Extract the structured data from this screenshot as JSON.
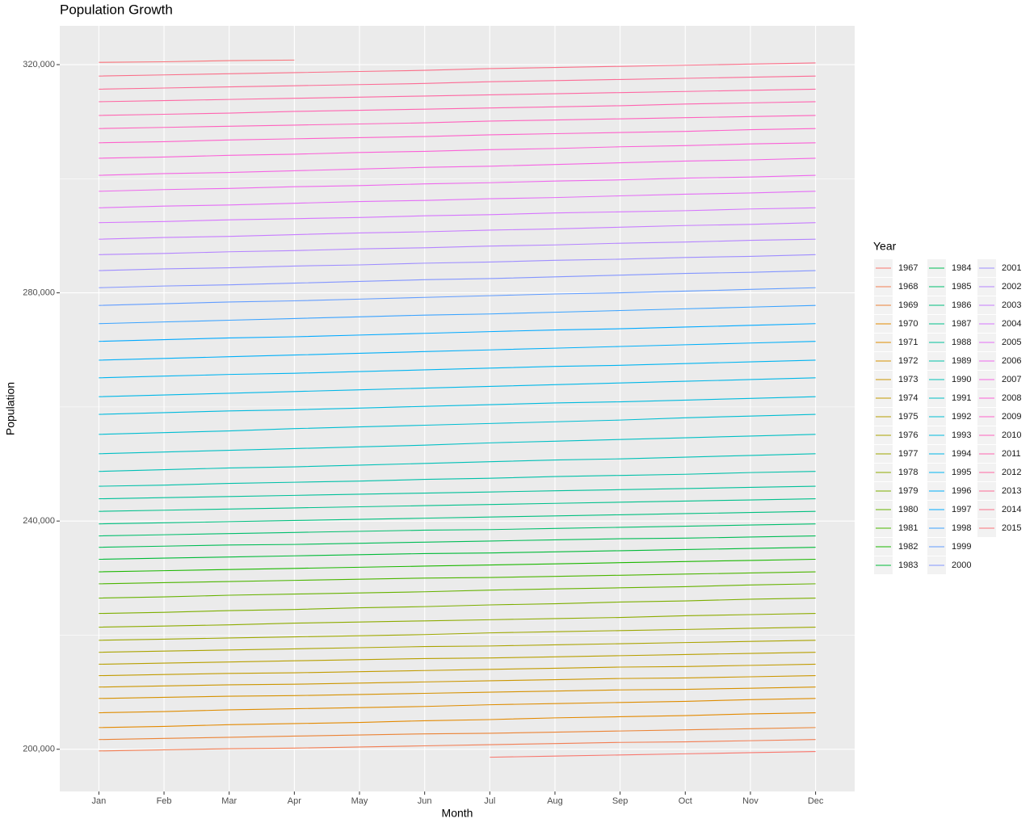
{
  "chart_data": {
    "type": "line",
    "title": "Population Growth",
    "x_label": "Month",
    "y_label": "Population",
    "categories": [
      "Jan",
      "Feb",
      "Mar",
      "Apr",
      "May",
      "Jun",
      "Jul",
      "Aug",
      "Sep",
      "Oct",
      "Nov",
      "Dec"
    ],
    "ylim": [
      192600,
      326800
    ],
    "yticks": [
      {
        "value": 200000,
        "label": "200,000"
      },
      {
        "value": 240000,
        "label": "240,000"
      },
      {
        "value": 280000,
        "label": "280,000"
      },
      {
        "value": 320000,
        "label": "320,000"
      }
    ],
    "minor_yticks": [
      220000,
      260000,
      300000
    ],
    "grid": true,
    "legend": {
      "title": "Year",
      "position": "right",
      "columns": 3
    },
    "series": [
      {
        "name": "1967",
        "color": "#F8766D",
        "values": [
          null,
          null,
          null,
          null,
          null,
          null,
          198600,
          198800,
          199000,
          199200,
          199400,
          199600
        ]
      },
      {
        "name": "1968",
        "color": "#F27D53",
        "values": [
          199700,
          199900,
          200100,
          200200,
          200400,
          200600,
          200800,
          201000,
          201200,
          201300,
          201500,
          201700
        ]
      },
      {
        "name": "1969",
        "color": "#EB8335",
        "values": [
          201700,
          201900,
          202100,
          202300,
          202500,
          202700,
          202800,
          203000,
          203200,
          203400,
          203600,
          203800
        ]
      },
      {
        "name": "1970",
        "color": "#E38900",
        "values": [
          203800,
          204000,
          204300,
          204500,
          204700,
          205000,
          205200,
          205500,
          205700,
          205900,
          206200,
          206400
        ]
      },
      {
        "name": "1971",
        "color": "#DE8C00",
        "values": [
          206400,
          206600,
          206900,
          207100,
          207300,
          207500,
          207800,
          208000,
          208200,
          208400,
          208700,
          208900
        ]
      },
      {
        "name": "1972",
        "color": "#D59100",
        "values": [
          208900,
          209100,
          209300,
          209400,
          209600,
          209800,
          210000,
          210200,
          210400,
          210500,
          210700,
          210900
        ]
      },
      {
        "name": "1973",
        "color": "#CB9600",
        "values": [
          210900,
          211100,
          211300,
          211400,
          211600,
          211800,
          212000,
          212200,
          212400,
          212500,
          212700,
          212900
        ]
      },
      {
        "name": "1974",
        "color": "#C19B00",
        "values": [
          212900,
          213100,
          213300,
          213400,
          213600,
          213800,
          214000,
          214200,
          214400,
          214500,
          214700,
          214900
        ]
      },
      {
        "name": "1975",
        "color": "#B79F00",
        "values": [
          214900,
          215100,
          215300,
          215500,
          215700,
          215900,
          216000,
          216200,
          216400,
          216600,
          216800,
          217000
        ]
      },
      {
        "name": "1976",
        "color": "#AAA300",
        "values": [
          217000,
          217200,
          217400,
          217600,
          217800,
          218000,
          218100,
          218300,
          218500,
          218700,
          218900,
          219100
        ]
      },
      {
        "name": "1977",
        "color": "#9DA700",
        "values": [
          219100,
          219300,
          219500,
          219700,
          219900,
          220100,
          220400,
          220600,
          220800,
          221000,
          221200,
          221400
        ]
      },
      {
        "name": "1978",
        "color": "#8DAB00",
        "values": [
          221400,
          221600,
          221800,
          222100,
          222300,
          222500,
          222700,
          222900,
          223100,
          223400,
          223600,
          223800
        ]
      },
      {
        "name": "1979",
        "color": "#7CAE00",
        "values": [
          223800,
          224000,
          224300,
          224500,
          224800,
          225000,
          225300,
          225500,
          225800,
          226000,
          226300,
          226500
        ]
      },
      {
        "name": "1980",
        "color": "#66B200",
        "values": [
          226500,
          226700,
          227000,
          227200,
          227400,
          227600,
          227900,
          228100,
          228300,
          228500,
          228800,
          229000
        ]
      },
      {
        "name": "1981",
        "color": "#4BB500",
        "values": [
          229000,
          229200,
          229400,
          229600,
          229800,
          230000,
          230100,
          230300,
          230500,
          230700,
          230900,
          231100
        ]
      },
      {
        "name": "1982",
        "color": "#1BB700",
        "values": [
          231100,
          231300,
          231500,
          231700,
          231900,
          232100,
          232300,
          232500,
          232700,
          232900,
          233100,
          233300
        ]
      },
      {
        "name": "1983",
        "color": "#00BA38",
        "values": [
          233300,
          233500,
          233700,
          233900,
          234100,
          234300,
          234400,
          234600,
          234800,
          235000,
          235200,
          235400
        ]
      },
      {
        "name": "1984",
        "color": "#00BC56",
        "values": [
          235400,
          235600,
          235800,
          235900,
          236100,
          236300,
          236500,
          236700,
          236900,
          237000,
          237200,
          237400
        ]
      },
      {
        "name": "1985",
        "color": "#00BE6D",
        "values": [
          237400,
          237600,
          237800,
          238000,
          238200,
          238400,
          238500,
          238700,
          238900,
          239100,
          239300,
          239500
        ]
      },
      {
        "name": "1986",
        "color": "#00BF7F",
        "values": [
          239500,
          239700,
          239900,
          240100,
          240300,
          240500,
          240700,
          240900,
          241100,
          241300,
          241500,
          241700
        ]
      },
      {
        "name": "1987",
        "color": "#00C08B",
        "values": [
          241700,
          241900,
          242100,
          242300,
          242500,
          242700,
          242900,
          243100,
          243300,
          243500,
          243700,
          243900
        ]
      },
      {
        "name": "1988",
        "color": "#00C099",
        "values": [
          243900,
          244100,
          244300,
          244500,
          244700,
          244900,
          245100,
          245300,
          245500,
          245700,
          245900,
          246100
        ]
      },
      {
        "name": "1989",
        "color": "#00C0A8",
        "values": [
          246100,
          246300,
          246600,
          246800,
          247000,
          247300,
          247500,
          247800,
          248000,
          248200,
          248500,
          248700
        ]
      },
      {
        "name": "1990",
        "color": "#00C0B6",
        "values": [
          248700,
          249000,
          249300,
          249500,
          249800,
          250100,
          250400,
          250700,
          250900,
          251200,
          251500,
          251800
        ]
      },
      {
        "name": "1991",
        "color": "#00BFC4",
        "values": [
          251800,
          252100,
          252400,
          252700,
          253000,
          253300,
          253700,
          254000,
          254300,
          254600,
          254900,
          255200
        ]
      },
      {
        "name": "1992",
        "color": "#00BDD1",
        "values": [
          255200,
          255500,
          255800,
          256200,
          256500,
          256800,
          257100,
          257400,
          257700,
          258100,
          258400,
          258700
        ]
      },
      {
        "name": "1993",
        "color": "#00BADD",
        "values": [
          258700,
          259000,
          259300,
          259500,
          259800,
          260100,
          260400,
          260700,
          260900,
          261200,
          261500,
          261800
        ]
      },
      {
        "name": "1994",
        "color": "#00B7E7",
        "values": [
          261800,
          262100,
          262400,
          262700,
          263000,
          263300,
          263600,
          263900,
          264200,
          264500,
          264800,
          265100
        ]
      },
      {
        "name": "1995",
        "color": "#00B4F0",
        "values": [
          265100,
          265400,
          265700,
          265900,
          266200,
          266500,
          266800,
          267100,
          267300,
          267600,
          267900,
          268200
        ]
      },
      {
        "name": "1996",
        "color": "#00AFF8",
        "values": [
          268200,
          268500,
          268800,
          269100,
          269400,
          269700,
          270000,
          270300,
          270600,
          270900,
          271200,
          271500
        ]
      },
      {
        "name": "1997",
        "color": "#00A9FF",
        "values": [
          271500,
          271800,
          272100,
          272300,
          272600,
          272900,
          273200,
          273500,
          273700,
          274000,
          274300,
          274600
        ]
      },
      {
        "name": "1998",
        "color": "#3BA3FF",
        "values": [
          274600,
          274900,
          275200,
          275500,
          275800,
          276100,
          276300,
          276600,
          276900,
          277200,
          277500,
          277800
        ]
      },
      {
        "name": "1999",
        "color": "#619CFF",
        "values": [
          277800,
          278100,
          278400,
          278600,
          278900,
          279200,
          279500,
          279800,
          280000,
          280300,
          280600,
          280900
        ]
      },
      {
        "name": "2000",
        "color": "#8395FF",
        "values": [
          280900,
          281200,
          281400,
          281700,
          282000,
          282300,
          282500,
          282800,
          283100,
          283400,
          283600,
          283900
        ]
      },
      {
        "name": "2001",
        "color": "#9E8DFF",
        "values": [
          283900,
          284200,
          284400,
          284700,
          284900,
          285200,
          285400,
          285700,
          285900,
          286200,
          286400,
          286700
        ]
      },
      {
        "name": "2002",
        "color": "#B484FF",
        "values": [
          286700,
          286900,
          287200,
          287400,
          287700,
          287900,
          288200,
          288400,
          288700,
          288900,
          289200,
          289400
        ]
      },
      {
        "name": "2003",
        "color": "#C77CFF",
        "values": [
          289400,
          289700,
          289900,
          290200,
          290500,
          290700,
          291000,
          291200,
          291500,
          291800,
          292000,
          292300
        ]
      },
      {
        "name": "2004",
        "color": "#D675FE",
        "values": [
          292300,
          292500,
          292800,
          293000,
          293200,
          293500,
          293700,
          294000,
          294200,
          294400,
          294700,
          294900
        ]
      },
      {
        "name": "2005",
        "color": "#E46EF6",
        "values": [
          294900,
          295200,
          295400,
          295700,
          296000,
          296200,
          296500,
          296700,
          297000,
          297300,
          297500,
          297800
        ]
      },
      {
        "name": "2006",
        "color": "#EE68ED",
        "values": [
          297800,
          298100,
          298300,
          298600,
          298800,
          299100,
          299300,
          299600,
          299800,
          300100,
          300300,
          300600
        ]
      },
      {
        "name": "2007",
        "color": "#F564E3",
        "values": [
          300600,
          300900,
          301100,
          301400,
          301700,
          302000,
          302200,
          302500,
          302800,
          303100,
          303300,
          303600
        ]
      },
      {
        "name": "2008",
        "color": "#FB61D7",
        "values": [
          303600,
          303800,
          304100,
          304300,
          304600,
          304800,
          305100,
          305300,
          305600,
          305800,
          306100,
          306300
        ]
      },
      {
        "name": "2009",
        "color": "#FE61CA",
        "values": [
          306300,
          306500,
          306800,
          307000,
          307200,
          307400,
          307700,
          307900,
          308100,
          308300,
          308600,
          308800
        ]
      },
      {
        "name": "2010",
        "color": "#FF62BD",
        "values": [
          308800,
          309000,
          309200,
          309400,
          309600,
          309800,
          310100,
          310300,
          310500,
          310700,
          310900,
          311100
        ]
      },
      {
        "name": "2011",
        "color": "#FF64B0",
        "values": [
          311100,
          311300,
          311500,
          311800,
          312000,
          312200,
          312400,
          312600,
          312800,
          313100,
          313300,
          313500
        ]
      },
      {
        "name": "2012",
        "color": "#FE67A2",
        "values": [
          313500,
          313700,
          313900,
          314100,
          314300,
          314500,
          314700,
          314900,
          315100,
          315300,
          315500,
          315700
        ]
      },
      {
        "name": "2013",
        "color": "#FC6B95",
        "values": [
          315700,
          315900,
          316100,
          316300,
          316500,
          316700,
          317000,
          317200,
          317400,
          317600,
          317800,
          318000
        ]
      },
      {
        "name": "2014",
        "color": "#FA6E88",
        "values": [
          318000,
          318200,
          318400,
          318600,
          318800,
          319000,
          319300,
          319500,
          319700,
          319900,
          320100,
          320300
        ]
      },
      {
        "name": "2015",
        "color": "#F9737A",
        "values": [
          320400,
          320500,
          320700,
          320800,
          null,
          null,
          null,
          null,
          null,
          null,
          null,
          null
        ]
      }
    ]
  }
}
